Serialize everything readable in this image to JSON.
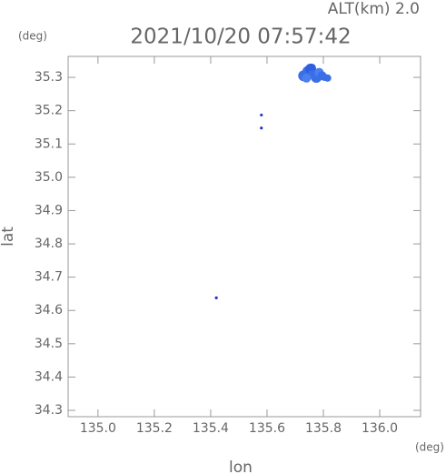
{
  "chart_data": {
    "type": "scatter",
    "title": "2021/10/20 07:57:42",
    "annotation": "ALT(km) 2.0",
    "y_unit": "(deg)",
    "x_unit": "(deg)",
    "xlabel": "lon",
    "ylabel": "lat",
    "x": [
      135.73,
      135.745,
      135.755,
      135.765,
      135.775,
      135.785,
      135.795,
      135.805,
      135.815,
      135.74,
      135.76,
      135.58,
      135.58,
      135.42
    ],
    "y": [
      35.305,
      35.318,
      35.325,
      35.31,
      35.3,
      35.315,
      35.305,
      35.3,
      35.298,
      35.298,
      35.33,
      35.187,
      35.148,
      34.638
    ],
    "colors": [
      "#3a6fe8",
      "#3a6fe8",
      "#2f5ee0",
      "#3a6fe8",
      "#3a6fe8",
      "#4a7ff0",
      "#3a6fe8",
      "#3a6fe8",
      "#3a6fe8",
      "#4a7ff0",
      "#2f5ee0",
      "#2233cc",
      "#2233cc",
      "#2233cc"
    ],
    "sizes": [
      6,
      6,
      6,
      6,
      6,
      5,
      5,
      4,
      4,
      5,
      4,
      1.6,
      1.6,
      1.6
    ],
    "xlim": [
      134.894,
      136.145
    ],
    "ylim": [
      34.281,
      35.363
    ],
    "xticks": [
      {
        "value": 135.0,
        "label": "135.0"
      },
      135.2,
      135.4,
      135.6,
      135.8,
      {
        "value": 136.0,
        "label": "136.0"
      }
    ],
    "yticks": [
      35.3,
      35.2,
      35.1,
      {
        "value": 35.0,
        "label": "35.0"
      },
      34.9,
      34.8,
      34.7,
      34.6,
      34.5,
      34.4,
      34.3
    ]
  }
}
